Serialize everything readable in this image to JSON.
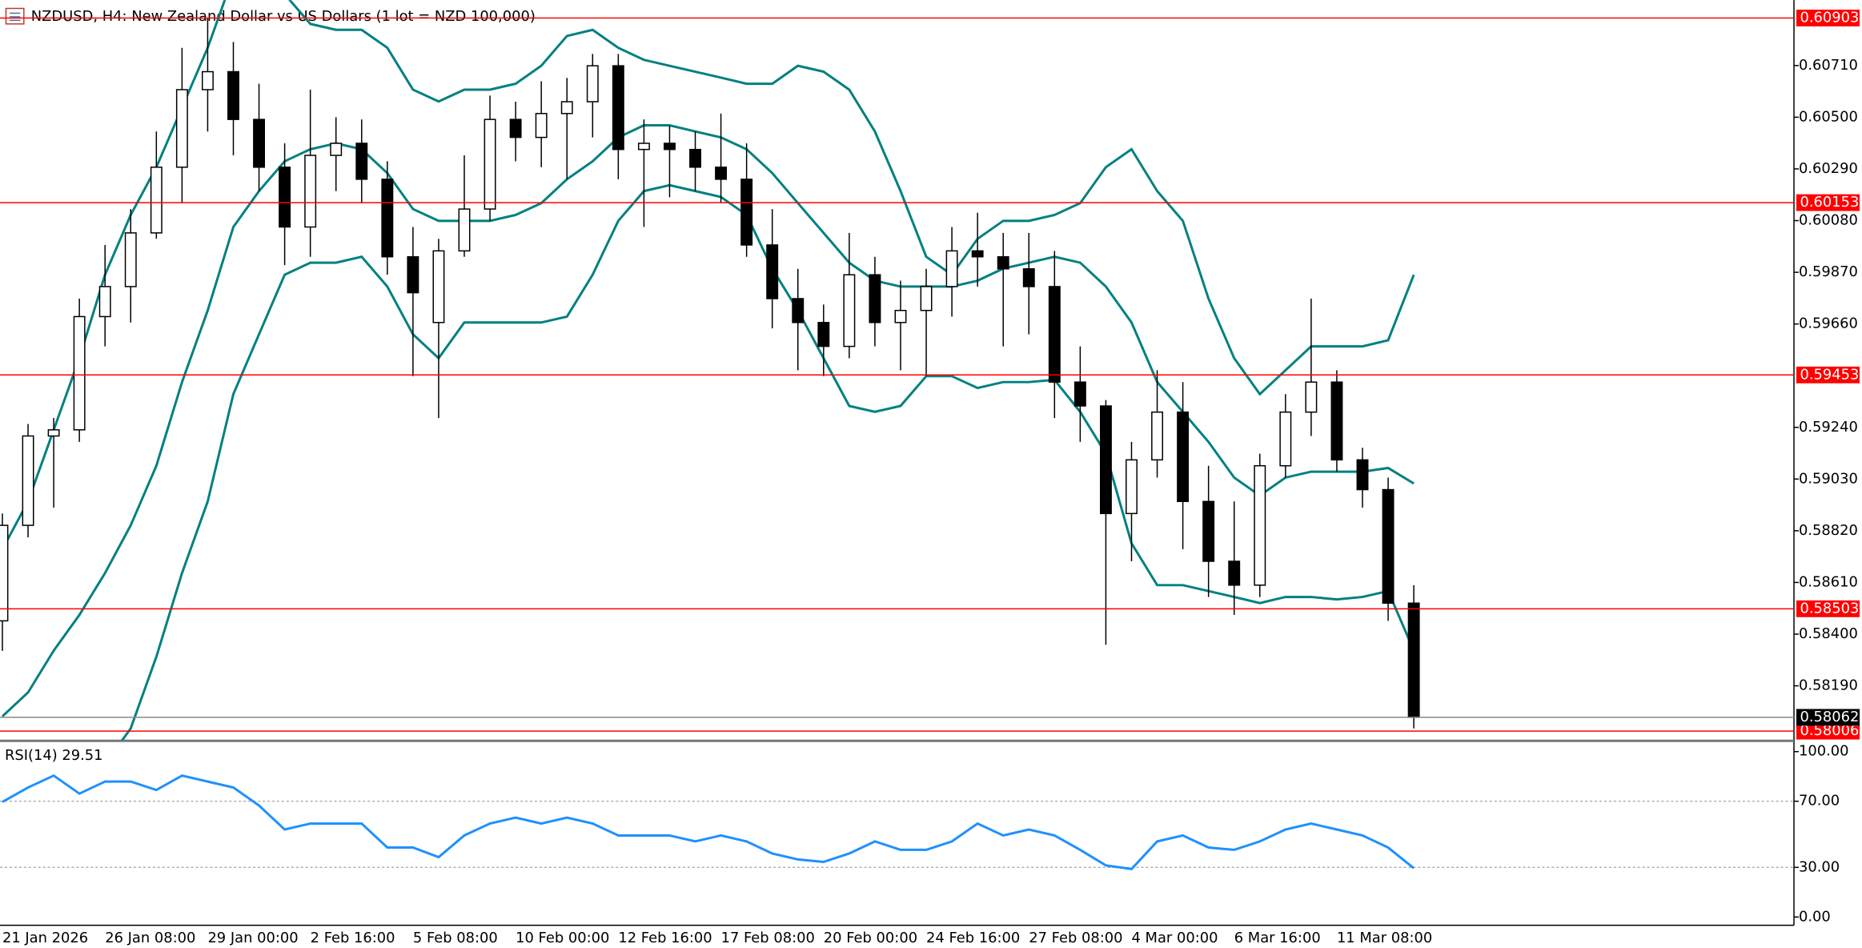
{
  "chart_data": [
    {
      "type": "candlestick",
      "title": "NZDUSD, H4:  New Zealand Dollar vs US Dollars (1 lot = NZD 100,000)",
      "categories": [
        "21 Jan 2026",
        null,
        null,
        null,
        "26 Jan 08:00",
        null,
        null,
        null,
        "29 Jan 00:00",
        null,
        null,
        null,
        "2 Feb 16:00",
        null,
        null,
        null,
        "5 Feb 08:00",
        null,
        null,
        null,
        "10 Feb 00:00",
        null,
        null,
        null,
        "12 Feb 16:00",
        null,
        null,
        null,
        "17 Feb 08:00",
        null,
        null,
        null,
        "20 Feb 00:00",
        null,
        null,
        null,
        "24 Feb 16:00",
        null,
        null,
        null,
        "27 Feb 08:00",
        null,
        null,
        null,
        "4 Mar 00:00",
        null,
        null,
        null,
        "6 Mar 16:00",
        null,
        null,
        null,
        "11 Mar 08:00",
        null,
        null,
        null
      ],
      "open": [
        0.58454,
        0.58842,
        0.59205,
        0.5923,
        0.5969,
        0.59812,
        0.6003,
        0.60297,
        0.60612,
        0.60685,
        0.60491,
        0.60297,
        0.60054,
        0.60345,
        0.60394,
        0.60248,
        0.59933,
        0.59666,
        0.59957,
        0.60127,
        0.60491,
        0.60418,
        0.60515,
        0.60563,
        0.60709,
        0.60369,
        0.60394,
        0.60369,
        0.60297,
        0.60248,
        0.59981,
        0.59763,
        0.59666,
        0.59569,
        0.5986,
        0.59666,
        0.59715,
        0.59812,
        0.59957,
        0.59933,
        0.59884,
        0.59812,
        0.59424,
        0.59327,
        0.5889,
        0.59108,
        0.59302,
        0.58939,
        0.58696,
        0.58599,
        0.59084,
        0.59302,
        0.59424,
        0.59108,
        0.58987,
        0.58526
      ],
      "high": [
        0.5889,
        0.59254,
        0.59278,
        0.59763,
        0.59981,
        0.60127,
        0.60442,
        0.60782,
        0.60903,
        0.60806,
        0.60636,
        0.60394,
        0.60612,
        0.605,
        0.60491,
        0.60321,
        0.60054,
        0.60006,
        0.60345,
        0.60588,
        0.60563,
        0.60646,
        0.6066,
        0.60757,
        0.60757,
        0.60491,
        0.60466,
        0.60442,
        0.60515,
        0.60394,
        0.60127,
        0.59884,
        0.59739,
        0.6003,
        0.59933,
        0.59836,
        0.59884,
        0.60054,
        0.60112,
        0.6003,
        0.6003,
        0.59957,
        0.59569,
        0.59351,
        0.59181,
        0.59472,
        0.59424,
        0.59084,
        0.58939,
        0.59133,
        0.59375,
        0.59763,
        0.59472,
        0.59157,
        0.59036,
        0.58599
      ],
      "low": [
        0.58332,
        0.58793,
        0.58914,
        0.59181,
        0.59569,
        0.59666,
        0.60006,
        0.60151,
        0.60442,
        0.60345,
        0.602,
        0.59899,
        0.59933,
        0.602,
        0.60151,
        0.5986,
        0.59448,
        0.59278,
        0.59933,
        0.60078,
        0.60321,
        0.60297,
        0.60248,
        0.60418,
        0.60248,
        0.60054,
        0.60175,
        0.602,
        0.60151,
        0.59933,
        0.59642,
        0.59472,
        0.59448,
        0.59521,
        0.59569,
        0.59472,
        0.59448,
        0.5969,
        0.59812,
        0.59569,
        0.59618,
        0.59278,
        0.59181,
        0.58357,
        0.58696,
        0.59036,
        0.58745,
        0.58551,
        0.58478,
        0.58551,
        0.59036,
        0.59205,
        0.5906,
        0.58914,
        0.58454,
        0.58017
      ],
      "close": [
        0.58842,
        0.59205,
        0.5923,
        0.5969,
        0.59812,
        0.6003,
        0.60297,
        0.60612,
        0.60685,
        0.60491,
        0.60297,
        0.60054,
        0.60345,
        0.60394,
        0.60248,
        0.59933,
        0.59787,
        0.59957,
        0.60127,
        0.60491,
        0.60418,
        0.60515,
        0.60563,
        0.60709,
        0.60369,
        0.60394,
        0.60369,
        0.60297,
        0.60248,
        0.59981,
        0.59763,
        0.59666,
        0.59569,
        0.5986,
        0.59666,
        0.59715,
        0.59812,
        0.59957,
        0.59933,
        0.59884,
        0.59812,
        0.59424,
        0.59327,
        0.5889,
        0.59108,
        0.59302,
        0.58939,
        0.58696,
        0.58599,
        0.59084,
        0.59302,
        0.59424,
        0.59108,
        0.58987,
        0.58526,
        0.58062
      ],
      "up_color": "#ffffff",
      "down_color": "#000000",
      "wick_color": "#000000",
      "bollinger": {
        "color": "#008080",
        "upper": [
          0.58745,
          0.58939,
          0.5923,
          0.59521,
          0.5986,
          0.60103,
          0.60297,
          0.60539,
          0.60782,
          0.61073,
          0.61097,
          0.61,
          0.60879,
          0.60855,
          0.60855,
          0.60782,
          0.60612,
          0.60564,
          0.60612,
          0.60612,
          0.60636,
          0.60709,
          0.6083,
          0.60855,
          0.60782,
          0.60733,
          0.60709,
          0.60685,
          0.60661,
          0.60636,
          0.60636,
          0.60709,
          0.60685,
          0.60612,
          0.60442,
          0.602,
          0.59933,
          0.5986,
          0.60006,
          0.60079,
          0.60079,
          0.60103,
          0.60151,
          0.60297,
          0.6037,
          0.602,
          0.60079,
          0.59763,
          0.59521,
          0.59375,
          0.59472,
          0.59569,
          0.59569,
          0.59569,
          0.59594,
          0.5986
        ],
        "middle": [
          0.58066,
          0.58163,
          0.58333,
          0.58478,
          0.58648,
          0.58842,
          0.59084,
          0.59424,
          0.59715,
          0.60054,
          0.602,
          0.60321,
          0.6037,
          0.60394,
          0.6037,
          0.60273,
          0.60127,
          0.60079,
          0.60079,
          0.60079,
          0.60103,
          0.60151,
          0.60248,
          0.60321,
          0.60418,
          0.60467,
          0.60467,
          0.60442,
          0.60418,
          0.6037,
          0.60273,
          0.60151,
          0.6003,
          0.59909,
          0.59836,
          0.59812,
          0.59812,
          0.59812,
          0.59836,
          0.59885,
          0.59909,
          0.59933,
          0.59909,
          0.59812,
          0.59666,
          0.59424,
          0.59303,
          0.59181,
          0.59036,
          0.58963,
          0.59036,
          0.5906,
          0.5906,
          0.5906,
          0.59075,
          0.59012
        ],
        "lower": [
          0.5729,
          0.57581,
          0.57678,
          0.57775,
          0.57872,
          0.58017,
          0.58308,
          0.58648,
          0.58939,
          0.59375,
          0.59618,
          0.5986,
          0.59909,
          0.59909,
          0.59933,
          0.59812,
          0.59618,
          0.59521,
          0.59666,
          0.59666,
          0.59666,
          0.59666,
          0.5969,
          0.5986,
          0.60079,
          0.602,
          0.60224,
          0.602,
          0.60176,
          0.60103,
          0.59885,
          0.59715,
          0.59521,
          0.59327,
          0.59303,
          0.59327,
          0.59448,
          0.59448,
          0.594,
          0.59424,
          0.59424,
          0.59433,
          0.59303,
          0.59133,
          0.58769,
          0.58599,
          0.58599,
          0.58575,
          0.58551,
          0.58526,
          0.58551,
          0.58551,
          0.58541,
          0.58551,
          0.58575,
          0.58333
        ]
      },
      "levels": [
        0.60903,
        0.60153,
        0.59453,
        0.58503,
        0.58006
      ],
      "level_color": "#ff0000",
      "last_price": 0.58062,
      "last_price_color": "#000000",
      "ylim": [
        0.57969,
        0.60976
      ],
      "yticks": [
        {
          "value": 0.6071,
          "label": "0.60710"
        },
        {
          "value": 0.605,
          "label": "0.60500"
        },
        {
          "value": 0.6029,
          "label": "0.60290"
        },
        {
          "value": 0.6008,
          "label": "0.60080"
        },
        {
          "value": 0.5987,
          "label": "0.59870"
        },
        {
          "value": 0.5966,
          "label": "0.59660"
        },
        {
          "value": 0.5924,
          "label": "0.59240"
        },
        {
          "value": 0.5903,
          "label": "0.59030"
        },
        {
          "value": 0.5882,
          "label": "0.58820"
        },
        {
          "value": 0.5861,
          "label": "0.58610"
        },
        {
          "value": 0.584,
          "label": "0.58400"
        },
        {
          "value": 0.5819,
          "label": "0.58190"
        }
      ]
    },
    {
      "type": "line",
      "title": "RSI(14) 29.51",
      "color": "#1e90ff",
      "values": [
        69.6,
        78.3,
        85.5,
        74.6,
        81.9,
        81.9,
        76.8,
        85.5,
        81.9,
        78.3,
        67.4,
        52.9,
        56.5,
        56.5,
        56.5,
        42.0,
        42.0,
        36.2,
        49.3,
        56.5,
        60.1,
        56.5,
        60.1,
        56.5,
        49.3,
        49.3,
        49.3,
        45.7,
        49.3,
        45.7,
        38.4,
        34.8,
        33.3,
        38.4,
        45.7,
        40.6,
        40.6,
        45.7,
        56.5,
        49.3,
        52.9,
        49.3,
        40.6,
        31.2,
        29.0,
        45.7,
        49.3,
        42.0,
        40.6,
        45.7,
        52.9,
        56.5,
        52.9,
        49.3,
        42.0,
        29.51
      ],
      "levels": [
        70,
        30
      ],
      "ylim": [
        -5,
        104
      ],
      "yticks": [
        {
          "value": 100,
          "label": "100.00"
        },
        {
          "value": 70,
          "label": "70.00"
        },
        {
          "value": 30,
          "label": "30.00"
        },
        {
          "value": 0,
          "label": "0.00"
        }
      ]
    }
  ]
}
